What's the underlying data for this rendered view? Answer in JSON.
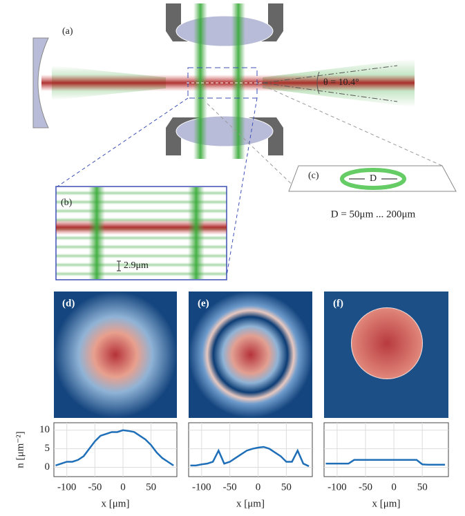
{
  "diagram": {
    "panel_a": "(a)",
    "angle": "θ = 10.4°",
    "panel_b": "(b)",
    "spacing": "2.9μm",
    "panel_c": "(c)",
    "ring_label": "D",
    "ring_range": "D = 50μm ... 200μm",
    "panel_d": "(d)",
    "panel_e": "(e)",
    "panel_f": "(f)"
  },
  "chart_data": [
    {
      "type": "line",
      "ylabel": "n [μm⁻²]",
      "xlabel": "x [μm]",
      "x": [
        -120,
        -110,
        -100,
        -90,
        -80,
        -70,
        -60,
        -50,
        -40,
        -30,
        -20,
        -10,
        0,
        10,
        20,
        30,
        40,
        50,
        60,
        70,
        80,
        90
      ],
      "series": [
        {
          "name": "d",
          "color": "#1f6fb8",
          "values": [
            0.5,
            1,
            1.5,
            1.5,
            2,
            3,
            5,
            7,
            8.5,
            9,
            9.5,
            9.5,
            10,
            9.8,
            9.5,
            8.5,
            7.5,
            6,
            4,
            2.5,
            1.5,
            0.5
          ]
        }
      ],
      "xlim": [
        -123,
        96
      ],
      "ylim": [
        -2.5,
        12
      ],
      "xticks": [
        -100,
        -50,
        0,
        50
      ],
      "yticks": [
        0,
        5,
        10
      ],
      "grid": true
    },
    {
      "type": "line",
      "xlabel": "x [μm]",
      "x": [
        -120,
        -110,
        -100,
        -90,
        -80,
        -70,
        -60,
        -50,
        -40,
        -30,
        -20,
        -10,
        0,
        10,
        20,
        30,
        40,
        50,
        60,
        70,
        80,
        90
      ],
      "series": [
        {
          "name": "e",
          "color": "#1f6fb8",
          "values": [
            0.5,
            0.5,
            0.8,
            1,
            1.5,
            4.5,
            1,
            1.5,
            2.5,
            3.5,
            4.5,
            5,
            5.3,
            5.5,
            5,
            4,
            3,
            1.5,
            1.5,
            4.5,
            1,
            0.3
          ]
        }
      ],
      "xlim": [
        -123,
        96
      ],
      "ylim": [
        -2.5,
        12
      ],
      "xticks": [
        -100,
        -50,
        0,
        50
      ],
      "yticks": [
        0,
        5,
        10
      ],
      "grid": true
    },
    {
      "type": "line",
      "xlabel": "x [μm]",
      "x": [
        -120,
        -110,
        -100,
        -90,
        -80,
        -70,
        -60,
        -50,
        -40,
        -30,
        -20,
        -10,
        0,
        10,
        20,
        30,
        40,
        50,
        60,
        70,
        80,
        90
      ],
      "series": [
        {
          "name": "f",
          "color": "#1f6fb8",
          "values": [
            1,
            1,
            1,
            1,
            1,
            2,
            2,
            2,
            2,
            2,
            2,
            2,
            2,
            2,
            2,
            2,
            2,
            0.8,
            0.7,
            0.7,
            0.7,
            0.7
          ]
        }
      ],
      "xlim": [
        -123,
        96
      ],
      "ylim": [
        -2.5,
        12
      ],
      "xticks": [
        -100,
        -50,
        0,
        50
      ],
      "yticks": [
        0,
        5,
        10
      ],
      "grid": true
    }
  ]
}
